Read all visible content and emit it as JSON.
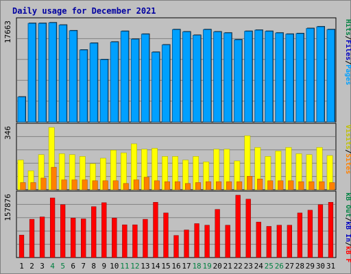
{
  "title": "Daily usage for December 2021",
  "colors": {
    "background": "#c0c0c0",
    "title": "#0000a0",
    "hits": "#00a0ff",
    "hits_shadow": "#0060a0",
    "files": "#0000c0",
    "pages": "#00c0ff",
    "visits": "#ffff00",
    "sites": "#ff8000",
    "kb_in": "#008040",
    "kb_out": "#008040",
    "kb_f": "#ff0000",
    "plot_bg": "#c0c0c0",
    "plot_border": "#000000",
    "grid": "#808080",
    "weekday_label": "#000000",
    "weekend_label": "#008040"
  },
  "chart_data": [
    {
      "type": "bar",
      "panel": "hits",
      "max_label": "17663",
      "legend": [
        {
          "text": "Hits",
          "color": "#008040"
        },
        {
          "text": "Files",
          "color": "#0000c0"
        },
        {
          "text": "Pages",
          "color": "#00a0ff"
        }
      ],
      "legend_separators": [
        "/",
        "/"
      ],
      "ylim": [
        0,
        17663
      ],
      "x": [
        "1",
        "2",
        "3",
        "4",
        "5",
        "6",
        "7",
        "8",
        "9",
        "10",
        "11",
        "12",
        "13",
        "14",
        "15",
        "16",
        "17",
        "18",
        "19",
        "20",
        "21",
        "22",
        "23",
        "24",
        "25",
        "26",
        "27",
        "28",
        "29",
        "30",
        "31"
      ],
      "series": [
        {
          "name": "Hits",
          "values": [
            4400,
            17400,
            17400,
            17500,
            17100,
            16100,
            12700,
            13900,
            11000,
            14100,
            16000,
            14600,
            15500,
            12300,
            13600,
            16300,
            15900,
            15300,
            16300,
            15900,
            15700,
            14500,
            16000,
            16200,
            16000,
            15700,
            15500,
            15600,
            16500,
            16800,
            16300
          ]
        }
      ]
    },
    {
      "type": "bar",
      "panel": "visits",
      "max_label": "346",
      "legend": [
        {
          "text": "Visits",
          "color": "#c0c000"
        },
        {
          "text": "Sites",
          "color": "#ff8000"
        }
      ],
      "legend_separators": [
        "/"
      ],
      "ylim": [
        0,
        346
      ],
      "x": [
        "1",
        "2",
        "3",
        "4",
        "5",
        "6",
        "7",
        "8",
        "9",
        "10",
        "11",
        "12",
        "13",
        "14",
        "15",
        "16",
        "17",
        "18",
        "19",
        "20",
        "21",
        "22",
        "23",
        "24",
        "25",
        "26",
        "27",
        "28",
        "29",
        "30",
        "31"
      ],
      "series": [
        {
          "name": "Visits",
          "values": [
            165,
            105,
            195,
            346,
            200,
            195,
            185,
            145,
            175,
            220,
            205,
            255,
            225,
            230,
            185,
            185,
            165,
            185,
            155,
            225,
            225,
            160,
            300,
            235,
            185,
            215,
            235,
            200,
            195,
            235,
            190
          ]
        },
        {
          "name": "Sites",
          "values": [
            40,
            40,
            65,
            125,
            55,
            55,
            55,
            50,
            50,
            50,
            35,
            55,
            70,
            50,
            45,
            45,
            35,
            40,
            45,
            45,
            45,
            45,
            75,
            60,
            50,
            50,
            50,
            45,
            45,
            45,
            40
          ]
        }
      ]
    },
    {
      "type": "bar",
      "panel": "kbytes",
      "max_label": "157876",
      "legend": [
        {
          "text": "kB Out",
          "color": "#008040"
        },
        {
          "text": "kB In",
          "color": "#0000c0"
        },
        {
          "text": "kB F",
          "color": "#ff0000"
        }
      ],
      "legend_separators": [
        "/",
        "/"
      ],
      "ylim": [
        0,
        157876
      ],
      "x": [
        "1",
        "2",
        "3",
        "4",
        "5",
        "6",
        "7",
        "8",
        "9",
        "10",
        "11",
        "12",
        "13",
        "14",
        "15",
        "16",
        "17",
        "18",
        "19",
        "20",
        "21",
        "22",
        "23",
        "24",
        "25",
        "26",
        "27",
        "28",
        "29",
        "30",
        "31"
      ],
      "series": [
        {
          "name": "kB F",
          "values": [
            57000,
            97000,
            103000,
            151000,
            134000,
            100000,
            98000,
            129000,
            139000,
            100000,
            83000,
            83000,
            97000,
            140000,
            113000,
            56000,
            70000,
            86000,
            82000,
            122000,
            82000,
            158000,
            148000,
            90000,
            79000,
            82000,
            82000,
            113000,
            120000,
            134000,
            140000
          ]
        }
      ]
    }
  ],
  "day_labels": [
    {
      "text": "1",
      "weekend": false
    },
    {
      "text": "2",
      "weekend": false
    },
    {
      "text": "3",
      "weekend": false
    },
    {
      "text": "4",
      "weekend": true
    },
    {
      "text": "5",
      "weekend": true
    },
    {
      "text": "6",
      "weekend": false
    },
    {
      "text": "7",
      "weekend": false
    },
    {
      "text": "8",
      "weekend": false
    },
    {
      "text": "9",
      "weekend": false
    },
    {
      "text": "10",
      "weekend": false
    },
    {
      "text": "11",
      "weekend": true
    },
    {
      "text": "12",
      "weekend": true
    },
    {
      "text": "13",
      "weekend": false
    },
    {
      "text": "14",
      "weekend": false
    },
    {
      "text": "15",
      "weekend": false
    },
    {
      "text": "16",
      "weekend": false
    },
    {
      "text": "17",
      "weekend": false
    },
    {
      "text": "18",
      "weekend": true
    },
    {
      "text": "19",
      "weekend": true
    },
    {
      "text": "20",
      "weekend": false
    },
    {
      "text": "21",
      "weekend": false
    },
    {
      "text": "22",
      "weekend": false
    },
    {
      "text": "23",
      "weekend": false
    },
    {
      "text": "24",
      "weekend": false
    },
    {
      "text": "25",
      "weekend": true
    },
    {
      "text": "26",
      "weekend": true
    },
    {
      "text": "27",
      "weekend": false
    },
    {
      "text": "28",
      "weekend": false
    },
    {
      "text": "29",
      "weekend": false
    },
    {
      "text": "30",
      "weekend": false
    },
    {
      "text": "31",
      "weekend": false
    }
  ]
}
